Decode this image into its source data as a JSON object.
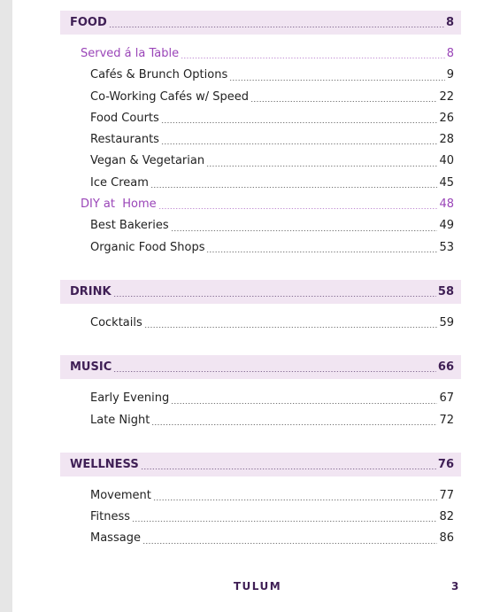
{
  "sections": [
    {
      "title": "FOOD",
      "page": "8",
      "subsections": [
        {
          "title": "Served á la Table",
          "page": "8",
          "items": [
            {
              "title": "Cafés & Brunch Options",
              "page": "9"
            },
            {
              "title": "Co-Working Cafés w/ Speed",
              "page": "22"
            },
            {
              "title": "Food Courts",
              "page": "26"
            },
            {
              "title": "Restaurants",
              "page": "28"
            },
            {
              "title": "Vegan & Vegetarian",
              "page": "40"
            },
            {
              "title": "Ice Cream",
              "page": "45"
            }
          ]
        },
        {
          "title": "DIY at  Home",
          "page": "48",
          "items": [
            {
              "title": "Best Bakeries",
              "page": "49"
            },
            {
              "title": "Organic Food Shops",
              "page": "53"
            }
          ]
        }
      ]
    },
    {
      "title": "DRINK",
      "page": "58",
      "items": [
        {
          "title": "Cocktails",
          "page": "59"
        }
      ]
    },
    {
      "title": "MUSIC",
      "page": "66",
      "items": [
        {
          "title": "Early Evening",
          "page": "67"
        },
        {
          "title": "Late Night",
          "page": "72"
        }
      ]
    },
    {
      "title": "WELLNESS",
      "page": "76",
      "items": [
        {
          "title": "Movement",
          "page": "77"
        },
        {
          "title": "Fitness",
          "page": "82"
        },
        {
          "title": "Massage",
          "page": "86"
        }
      ]
    }
  ],
  "footer": {
    "title": "TULUM",
    "page": "3"
  }
}
